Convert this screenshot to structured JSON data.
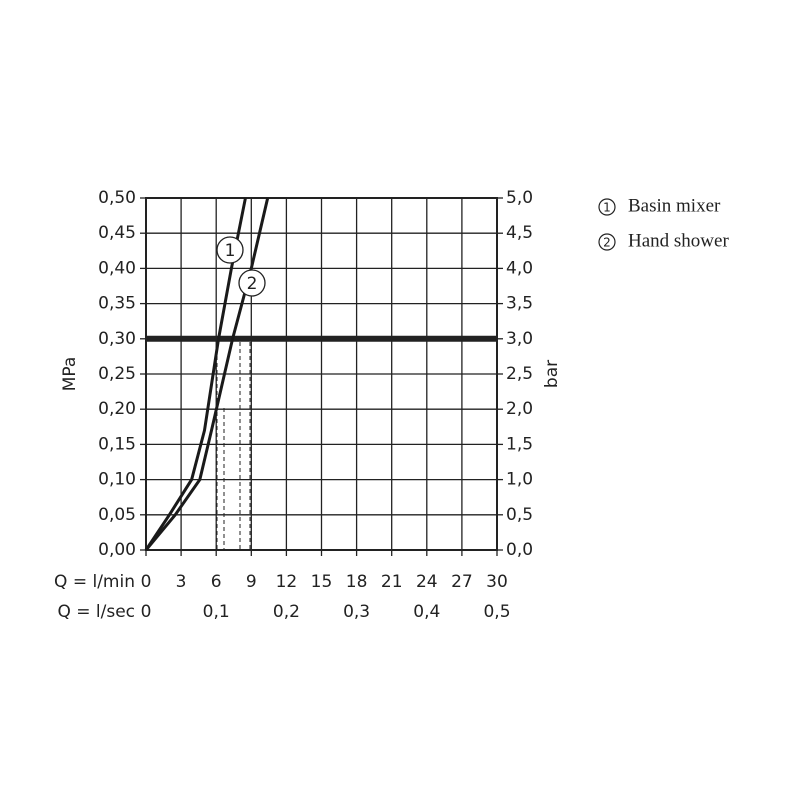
{
  "chart_data": {
    "type": "line",
    "x_label_1": "Q = l/min",
    "x_label_2": "Q = l/sec",
    "y_label": "MPa",
    "y2_label": "bar",
    "xlim": [
      0,
      30
    ],
    "xticks": [
      0,
      3,
      6,
      9,
      12,
      15,
      18,
      21,
      24,
      27,
      30
    ],
    "x2ticks": [
      {
        "value": 0,
        "label": "0"
      },
      {
        "value": 6,
        "label": "0,1"
      },
      {
        "value": 12,
        "label": "0,2"
      },
      {
        "value": 18,
        "label": "0,3"
      },
      {
        "value": 24,
        "label": "0,4"
      },
      {
        "value": 30,
        "label": "0,5"
      }
    ],
    "ylim": [
      0,
      0.5
    ],
    "yticks": [
      {
        "value": 0,
        "label": "0,00"
      },
      {
        "value": 0.05,
        "label": "0,05"
      },
      {
        "value": 0.1,
        "label": "0,10"
      },
      {
        "value": 0.15,
        "label": "0,15"
      },
      {
        "value": 0.2,
        "label": "0,20"
      },
      {
        "value": 0.25,
        "label": "0,25"
      },
      {
        "value": 0.3,
        "label": "0,30"
      },
      {
        "value": 0.35,
        "label": "0,35"
      },
      {
        "value": 0.4,
        "label": "0,40"
      },
      {
        "value": 0.45,
        "label": "0,45"
      },
      {
        "value": 0.5,
        "label": "0,50"
      }
    ],
    "y2lim": [
      0,
      5
    ],
    "y2ticks": [
      {
        "value": 0,
        "label": "0,0"
      },
      {
        "value": 0.5,
        "label": "0,5"
      },
      {
        "value": 1,
        "label": "1,0"
      },
      {
        "value": 1.5,
        "label": "1,5"
      },
      {
        "value": 2,
        "label": "2,0"
      },
      {
        "value": 2.5,
        "label": "2,5"
      },
      {
        "value": 3,
        "label": "3,0"
      },
      {
        "value": 3.5,
        "label": "3,5"
      },
      {
        "value": 4,
        "label": "4,0"
      },
      {
        "value": 4.5,
        "label": "4,5"
      },
      {
        "value": 5,
        "label": "5,0"
      }
    ],
    "grid": true,
    "reference_y": 0.3,
    "series": [
      {
        "name": "Basin mixer",
        "marker": "1",
        "color": "#1a1a1a",
        "x": [
          0,
          2,
          3.9,
          5,
          6.2,
          7.3,
          8.5
        ],
        "values": [
          0,
          0.05,
          0.1,
          0.17,
          0.3,
          0.4,
          0.5
        ]
      },
      {
        "name": "Hand shower",
        "marker": "2",
        "color": "#1a1a1a",
        "x": [
          0,
          2.5,
          4.6,
          5.6,
          7.4,
          9.0,
          10.4
        ],
        "values": [
          0,
          0.05,
          0.1,
          0.17,
          0.3,
          0.4,
          0.5
        ]
      }
    ]
  }
}
